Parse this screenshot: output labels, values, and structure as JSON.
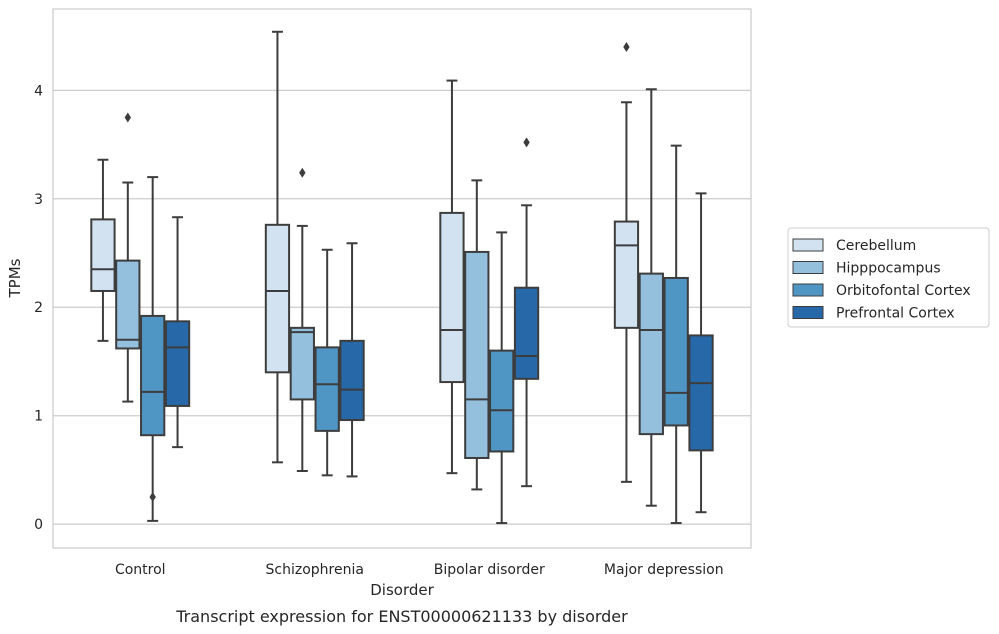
{
  "chart_data": {
    "type": "box",
    "xlabel": "Disorder",
    "ylabel": "TPMs",
    "caption": "Transcript expression for ENST00000621133 by disorder",
    "ylim": [
      -0.22,
      4.75
    ],
    "yticks": [
      "0",
      "1",
      "2",
      "3",
      "4"
    ],
    "grid": true,
    "legend_position": "right",
    "categories": [
      "Control",
      "Schizophrenia",
      "Bipolar disorder",
      "Major depression"
    ],
    "series": [
      {
        "name": "Cerebellum",
        "color": "#d2e2f1",
        "boxes": [
          {
            "whislo": 1.69,
            "q1": 2.15,
            "med": 2.35,
            "q3": 2.81,
            "whishi": 3.36,
            "fliers": []
          },
          {
            "whislo": 0.57,
            "q1": 1.4,
            "med": 2.15,
            "q3": 2.76,
            "whishi": 4.54,
            "fliers": []
          },
          {
            "whislo": 0.47,
            "q1": 1.31,
            "med": 1.79,
            "q3": 2.87,
            "whishi": 4.09,
            "fliers": []
          },
          {
            "whislo": 0.39,
            "q1": 1.81,
            "med": 2.57,
            "q3": 2.79,
            "whishi": 3.89,
            "fliers": [
              4.4
            ]
          }
        ]
      },
      {
        "name": "Hipppocampus",
        "color": "#94c0dd",
        "boxes": [
          {
            "whislo": 1.13,
            "q1": 1.62,
            "med": 1.7,
            "q3": 2.43,
            "whishi": 3.15,
            "fliers": [
              3.75
            ]
          },
          {
            "whislo": 0.49,
            "q1": 1.15,
            "med": 1.77,
            "q3": 1.81,
            "whishi": 2.75,
            "fliers": [
              3.24
            ]
          },
          {
            "whislo": 0.32,
            "q1": 0.61,
            "med": 1.15,
            "q3": 2.51,
            "whishi": 3.17,
            "fliers": []
          },
          {
            "whislo": 0.17,
            "q1": 0.83,
            "med": 1.79,
            "q3": 2.31,
            "whishi": 4.01,
            "fliers": []
          }
        ]
      },
      {
        "name": "Orbitofontal Cortex",
        "color": "#5096c5",
        "boxes": [
          {
            "whislo": 0.03,
            "q1": 0.82,
            "med": 1.22,
            "q3": 1.92,
            "whishi": 3.2,
            "fliers": [
              0.25
            ]
          },
          {
            "whislo": 0.45,
            "q1": 0.86,
            "med": 1.29,
            "q3": 1.63,
            "whishi": 2.53,
            "fliers": []
          },
          {
            "whislo": 0.01,
            "q1": 0.67,
            "med": 1.05,
            "q3": 1.6,
            "whishi": 2.69,
            "fliers": []
          },
          {
            "whislo": 0.01,
            "q1": 0.91,
            "med": 1.21,
            "q3": 2.27,
            "whishi": 3.49,
            "fliers": []
          }
        ]
      },
      {
        "name": "Prefrontal Cortex",
        "color": "#2768a9",
        "boxes": [
          {
            "whislo": 0.71,
            "q1": 1.09,
            "med": 1.63,
            "q3": 1.87,
            "whishi": 2.83,
            "fliers": []
          },
          {
            "whislo": 0.44,
            "q1": 0.96,
            "med": 1.24,
            "q3": 1.69,
            "whishi": 2.59,
            "fliers": []
          },
          {
            "whislo": 0.35,
            "q1": 1.34,
            "med": 1.55,
            "q3": 2.18,
            "whishi": 2.94,
            "fliers": [
              3.52
            ]
          },
          {
            "whislo": 0.11,
            "q1": 0.68,
            "med": 1.3,
            "q3": 1.74,
            "whishi": 3.05,
            "fliers": []
          }
        ]
      }
    ]
  }
}
